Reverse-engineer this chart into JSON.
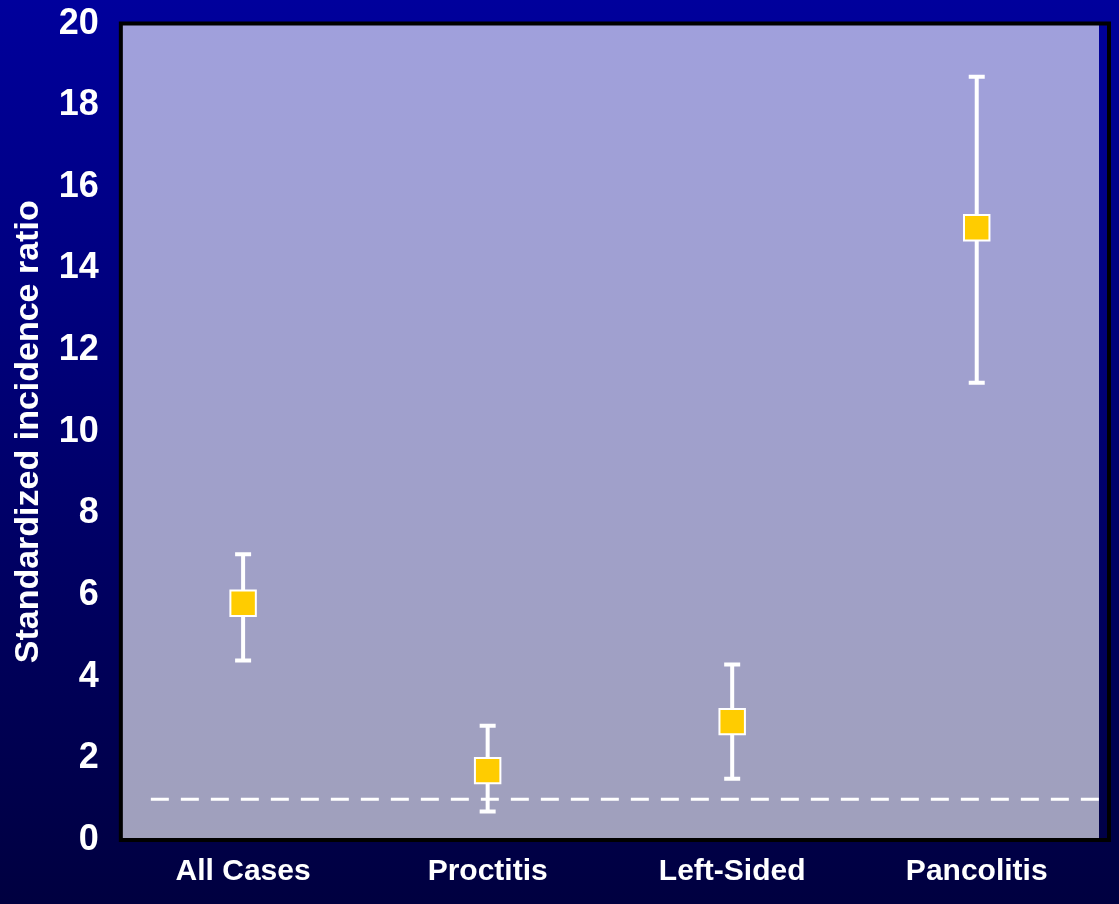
{
  "chart_data": {
    "type": "scatter",
    "ylabel": "Standardized incidence ratio",
    "categories": [
      "All Cases",
      "Proctitis",
      "Left-Sided",
      "Pancolitis"
    ],
    "series": [
      {
        "color": "#ffcc00",
        "values": [
          5.8,
          1.7,
          2.9,
          15.0
        ],
        "errors": [
          [
            4.4,
            7.0
          ],
          [
            0.7,
            2.8
          ],
          [
            1.5,
            4.3
          ],
          [
            11.2,
            18.7
          ]
        ]
      }
    ],
    "ylim": [
      0,
      20
    ],
    "yticks": [
      0,
      2,
      4,
      6,
      8,
      10,
      12,
      14,
      16,
      18,
      20
    ],
    "ref_lines": [
      {
        "axis": "y",
        "value": 1,
        "color": "#ffffff",
        "line_style": "dashed"
      }
    ],
    "marker": "square",
    "grid": false,
    "legend": false
  }
}
